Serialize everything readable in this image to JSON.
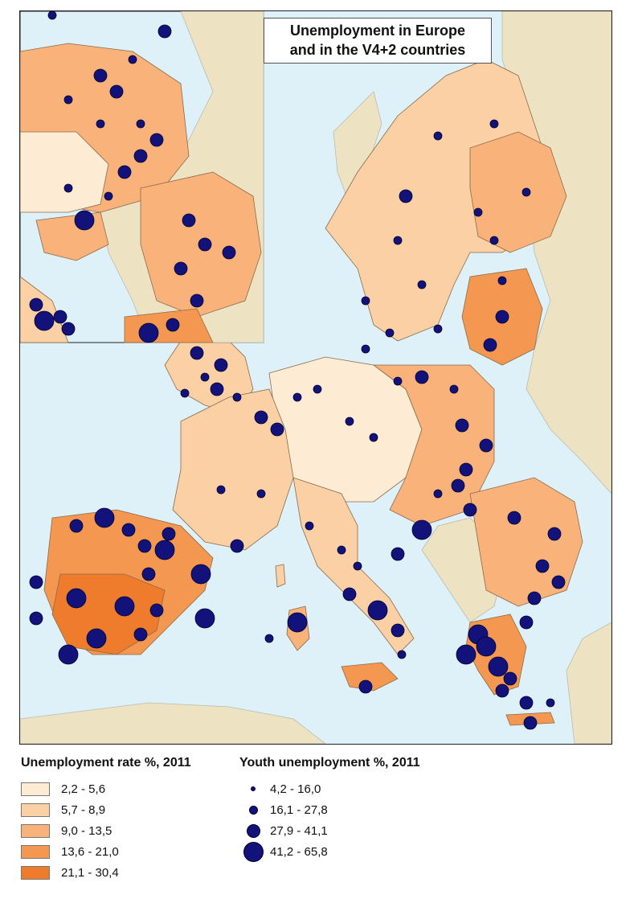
{
  "map": {
    "title_line1": "Unemployment in Europe",
    "title_line2": "and in the V4+2 countries",
    "colors": {
      "sea": "#dff1f8",
      "non_eu_land": "#ede3c3",
      "rate_classes": [
        "#fdebd4",
        "#fbd0a4",
        "#f9b27a",
        "#f49851",
        "#ef7c2d"
      ],
      "youth_dot": "#12127a",
      "border": "#8a6a4a"
    }
  },
  "legend": {
    "rate": {
      "title": "Unemployment rate %, 2011",
      "classes": [
        "2,2 - 5,6",
        "5,7 - 8,9",
        "9,0 - 13,5",
        "13,6 - 21,0",
        "21,1 - 30,4"
      ]
    },
    "youth": {
      "title": "Youth unemployment %, 2011",
      "classes": [
        "4,2 - 16,0",
        "16,1 - 27,8",
        "27,9 - 41,1",
        "41,2 - 65,8"
      ]
    }
  }
}
